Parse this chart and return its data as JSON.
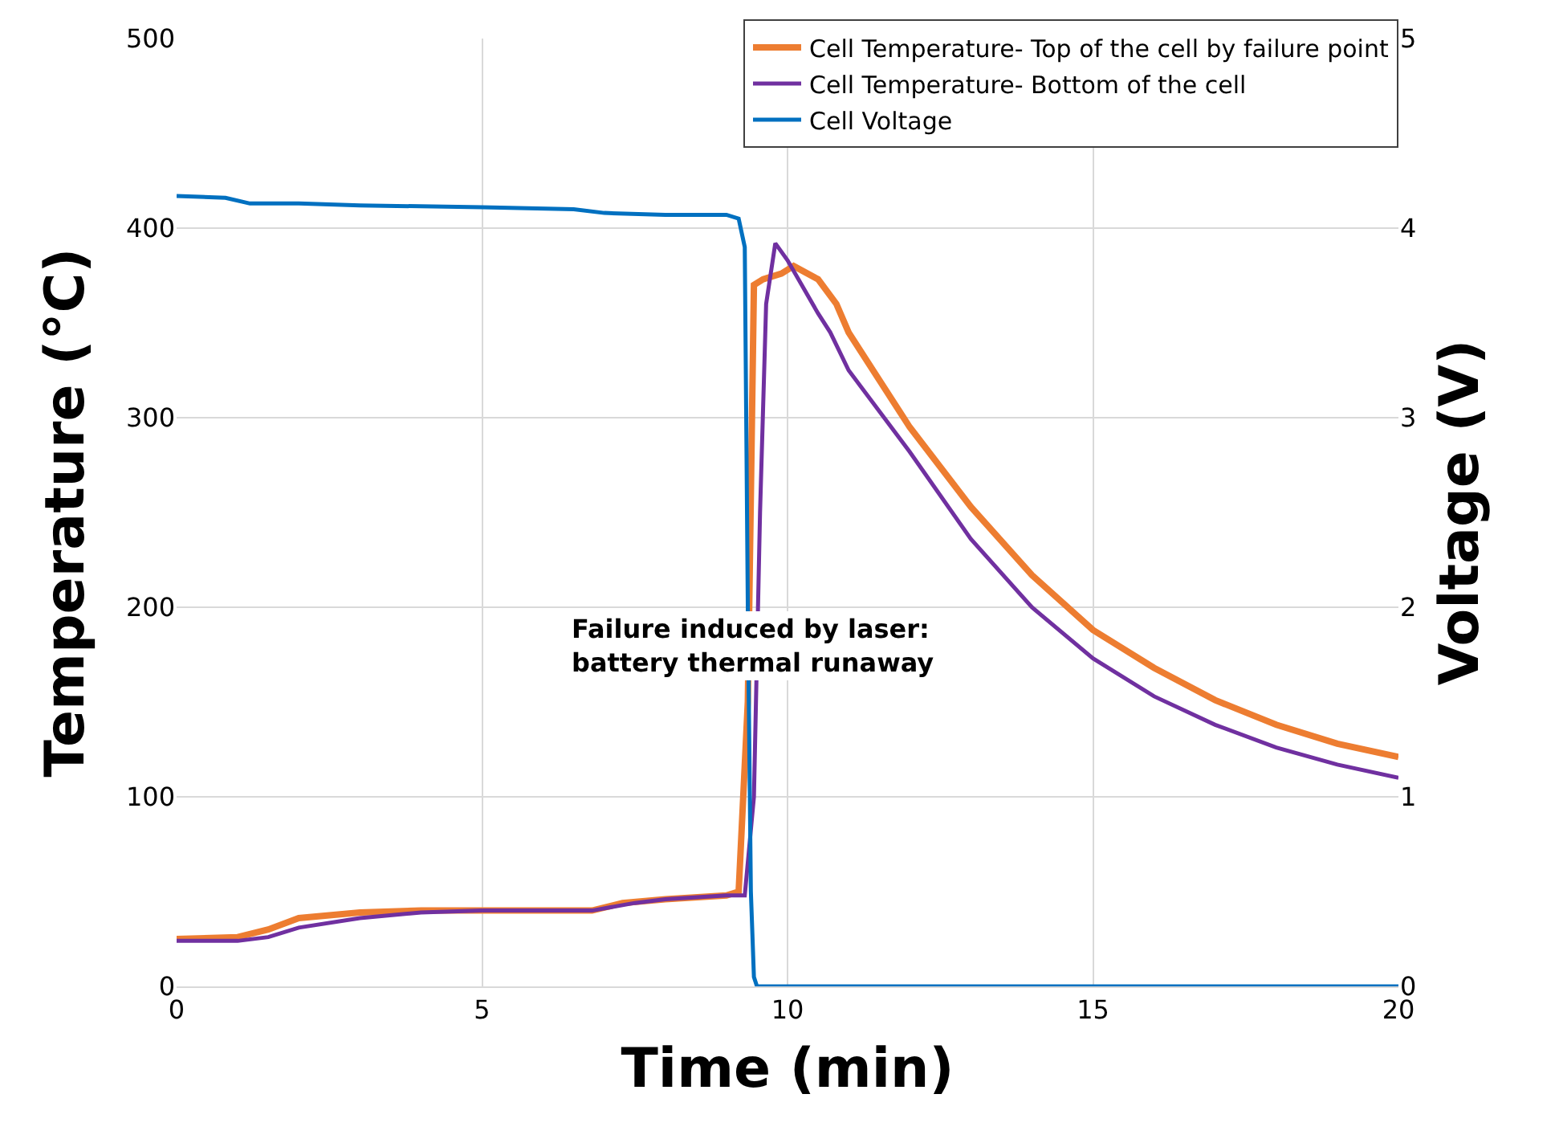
{
  "chart_data": {
    "type": "line",
    "xlabel": "Time (min)",
    "ylabel": "Temperature (°C)",
    "y2label": "Voltage (V)",
    "xlim": [
      0,
      20
    ],
    "xticks": [
      0,
      5,
      10,
      15,
      20
    ],
    "ylim": [
      0,
      500
    ],
    "yticks": [
      0,
      100,
      200,
      300,
      400,
      500
    ],
    "y2lim": [
      0,
      5
    ],
    "y2ticks": [
      0,
      1,
      2,
      3,
      4,
      5
    ],
    "grid": true,
    "legend": "top right",
    "marker": "none",
    "line_style": "solid",
    "annotations": [
      "Failure induced by laser:\nbattery thermal runaway"
    ],
    "series": [
      {
        "name": "Cell Temperature- Top of the cell by failure point",
        "color": "#ed7d31",
        "x": [
          0,
          1,
          1.5,
          2,
          3,
          4,
          5,
          6,
          6.8,
          7.3,
          8,
          9,
          9.2,
          9.35,
          9.45,
          9.6,
          9.9,
          10.1,
          10.5,
          10.8,
          11,
          11.5,
          12,
          13,
          14,
          15,
          16,
          17,
          18,
          19,
          20
        ],
        "values": [
          25,
          26,
          30,
          36,
          39,
          40,
          40,
          40,
          40,
          44,
          46,
          48,
          50,
          150,
          370,
          373,
          376,
          380,
          373,
          360,
          345,
          320,
          295,
          253,
          217,
          188,
          168,
          151,
          138,
          128,
          121
        ]
      },
      {
        "name": "Cell Temperature- Bottom of the cell",
        "color": "#7030a0",
        "x": [
          0,
          1,
          1.5,
          2,
          3,
          4,
          5,
          6,
          6.8,
          7.5,
          8,
          9,
          9.3,
          9.45,
          9.55,
          9.65,
          9.8,
          10,
          10.5,
          10.7,
          11,
          12,
          13,
          14,
          15,
          16,
          17,
          18,
          19,
          20
        ],
        "values": [
          24,
          24,
          26,
          31,
          36,
          39,
          40,
          40,
          40,
          44,
          46,
          48,
          48,
          100,
          250,
          360,
          392,
          383,
          355,
          345,
          325,
          282,
          236,
          200,
          173,
          153,
          138,
          126,
          117,
          110
        ]
      },
      {
        "name": "Cell Voltage",
        "color": "#0070c0",
        "axis": "y2",
        "x": [
          0,
          0.8,
          1.2,
          2,
          3,
          5,
          6.5,
          7,
          8,
          9,
          9.2,
          9.3,
          9.35,
          9.4,
          9.45,
          9.5,
          10,
          20
        ],
        "values": [
          4.17,
          4.16,
          4.13,
          4.13,
          4.12,
          4.11,
          4.1,
          4.08,
          4.07,
          4.07,
          4.05,
          3.9,
          2,
          0.5,
          0.05,
          0,
          0,
          0
        ]
      }
    ]
  }
}
